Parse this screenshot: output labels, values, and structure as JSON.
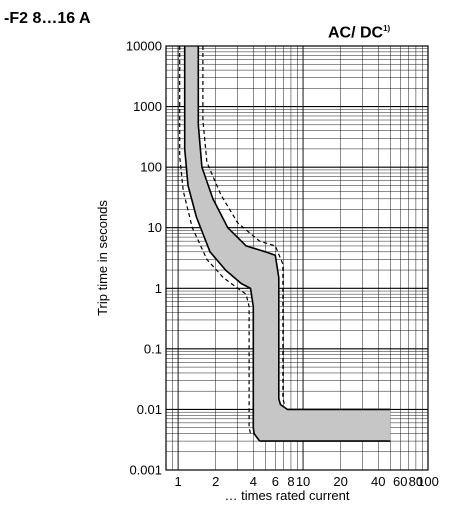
{
  "header": {
    "left_title": "-F2  8…16 A",
    "right_title": "AC/ DC",
    "right_note": "1)"
  },
  "chart_data": {
    "type": "area",
    "title": "-F2  8…16 A",
    "subtitle": "AC/ DC1)",
    "xlabel": "… times rated current",
    "ylabel": "Trip time in seconds",
    "x_scale": "log",
    "y_scale": "log",
    "xlim": [
      0.8,
      100
    ],
    "ylim": [
      0.001,
      10000
    ],
    "x_ticks": [
      1,
      2,
      4,
      6,
      8,
      10,
      20,
      40,
      60,
      80,
      100
    ],
    "x_tick_labels": [
      "1",
      "2",
      "4",
      "6",
      "8",
      "10",
      "20",
      "40",
      "60",
      "80",
      "100"
    ],
    "y_ticks": [
      10000,
      1000,
      100,
      10,
      1,
      0.1,
      0.01,
      0.001
    ],
    "y_tick_labels": [
      "10000",
      "1000",
      "100",
      "10",
      "1",
      "0.1",
      "0.01",
      "0.001"
    ],
    "grid": true,
    "series": [
      {
        "style": "solid",
        "x": [
          1.13,
          1.13,
          1.2,
          1.4,
          1.8,
          2.4,
          3.2,
          3.8,
          4.0,
          4.0,
          4.05,
          4.5
        ],
        "y": [
          10000,
          200,
          50,
          15,
          4,
          2,
          1.2,
          1.0,
          0.5,
          0.005,
          0.004,
          0.003
        ]
      },
      {
        "style": "solid",
        "x": [
          1.45,
          1.45,
          1.55,
          1.9,
          2.5,
          3.5,
          5.0,
          6.0,
          6.4,
          6.4,
          6.6,
          7.5,
          50
        ],
        "y": [
          10000,
          500,
          100,
          30,
          10,
          5,
          4,
          3.5,
          1.5,
          0.015,
          0.012,
          0.01,
          0.01
        ]
      },
      {
        "style": "dashed",
        "x": [
          1.03,
          1.03,
          1.1,
          1.3,
          1.7,
          2.3,
          3.0,
          3.5,
          3.7,
          3.7,
          3.8
        ],
        "y": [
          10000,
          150,
          40,
          10,
          3,
          1.5,
          1.0,
          0.8,
          0.5,
          0.005,
          0.004
        ]
      },
      {
        "style": "dashed",
        "x": [
          1.58,
          1.58,
          1.7,
          2.2,
          3.0,
          4.5,
          6.0,
          6.9,
          6.9,
          7.1
        ],
        "y": [
          10000,
          600,
          120,
          35,
          12,
          6,
          5,
          2.5,
          0.015,
          0.012
        ]
      },
      {
        "style": "solid",
        "x": [
          4.5,
          50
        ],
        "y": [
          0.003,
          0.003
        ]
      }
    ],
    "band_color": "#c6c6c6"
  }
}
